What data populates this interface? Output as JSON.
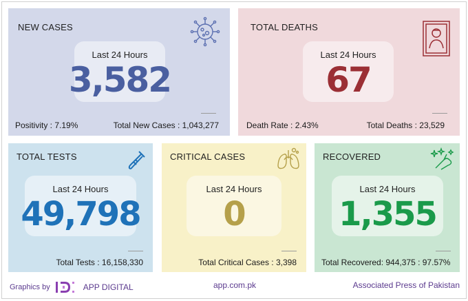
{
  "cards": {
    "new_cases": {
      "title": "NEW CASES",
      "period": "Last 24 Hours",
      "value": "3,582",
      "stat_left": "Positivity : 7.19%",
      "stat_right": "Total New Cases : 1,043,277",
      "icon": "virus-icon",
      "color": "#4a5fa0"
    },
    "total_deaths": {
      "title": "TOTAL DEATHS",
      "period": "Last 24 Hours",
      "value": "67",
      "stat_left": "Death Rate : 2.43%",
      "stat_right": "Total Deaths : 23,529",
      "icon": "portrait-frame-icon",
      "color": "#9b2f35"
    },
    "total_tests": {
      "title": "TOTAL TESTS",
      "period": "Last 24 Hours",
      "value": "49,798",
      "stat": "Total Tests : 16,158,330",
      "icon": "test-tube-icon",
      "color": "#1f72b8"
    },
    "critical_cases": {
      "title": "CRITICAL CASES",
      "period": "Last 24 Hours",
      "value": "0",
      "stat": "Total Critical Cases : 3,398",
      "icon": "lungs-icon",
      "color": "#b5a04a"
    },
    "recovered": {
      "title": "RECOVERED",
      "period": "Last 24 Hours",
      "value": "1,355",
      "stat": "Total Recovered: 944,375 : 97.57%",
      "icon": "sparkle-hand-icon",
      "color": "#1a9a4a"
    }
  },
  "footer": {
    "graphics_by": "Graphics by",
    "brand": "APP DIGITAL",
    "website": "app.com.pk",
    "agency": "Associated Press of Pakistan"
  }
}
